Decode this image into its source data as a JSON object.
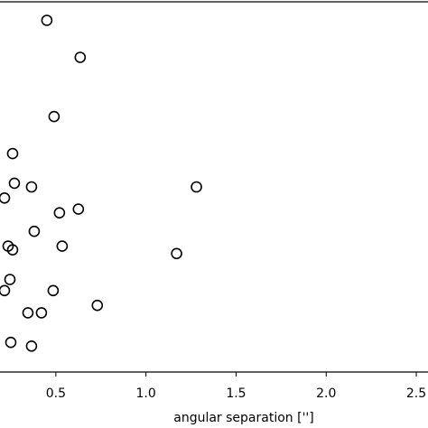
{
  "chart_data": {
    "type": "scatter",
    "x_label": "angular separation ['']",
    "x": [
      0.45,
      0.635,
      0.49,
      0.26,
      0.27,
      0.365,
      0.215,
      1.28,
      0.625,
      0.52,
      0.38,
      0.235,
      0.26,
      0.535,
      1.17,
      0.245,
      0.215,
      0.485,
      0.73,
      0.42,
      0.345,
      0.25,
      0.365
    ],
    "values": [
      0.95,
      0.85,
      0.69,
      0.59,
      0.51,
      0.5,
      0.47,
      0.5,
      0.44,
      0.43,
      0.38,
      0.34,
      0.33,
      0.34,
      0.32,
      0.25,
      0.22,
      0.22,
      0.18,
      0.16,
      0.16,
      0.08,
      0.07
    ],
    "color": "#000000",
    "xlim": [
      0.19,
      2.565
    ],
    "ylim": [
      0,
      1
    ],
    "xticks": [
      0.5,
      {
        "value": 1.0,
        "label": "1.0"
      },
      1.5,
      {
        "value": 2.0,
        "label": "2.0"
      },
      2.5
    ]
  }
}
